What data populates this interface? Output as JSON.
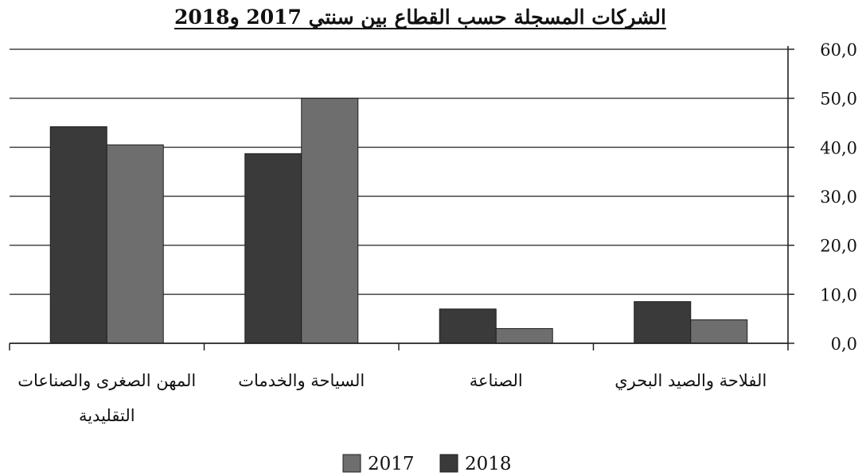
{
  "chart_data": {
    "type": "bar",
    "title": "الشركات المسجلة حسب القطاع بين سنتي 2017 و2018",
    "categories": [
      [
        "المهن الصغرى والصناعات",
        "التقليدية"
      ],
      [
        "السياحة والخدمات"
      ],
      [
        "الصناعة"
      ],
      [
        "الفلاحة والصيد البحري"
      ]
    ],
    "series": [
      {
        "name": "2018",
        "color": "#3a3a3a",
        "values": [
          44.2,
          38.7,
          7.0,
          8.5
        ]
      },
      {
        "name": "2017",
        "color": "#6e6e6e",
        "values": [
          40.5,
          50.0,
          3.0,
          4.8
        ]
      }
    ],
    "legend_order": [
      "2017",
      "2018"
    ],
    "ylim": [
      0,
      60
    ],
    "yticks": [
      "0,0",
      "10,0",
      "20,0",
      "30,0",
      "40,0",
      "50,0",
      "60,0"
    ],
    "y_axis_side": "right",
    "grid": true,
    "legend_position": "bottom-center",
    "xlabel": "",
    "ylabel": ""
  }
}
